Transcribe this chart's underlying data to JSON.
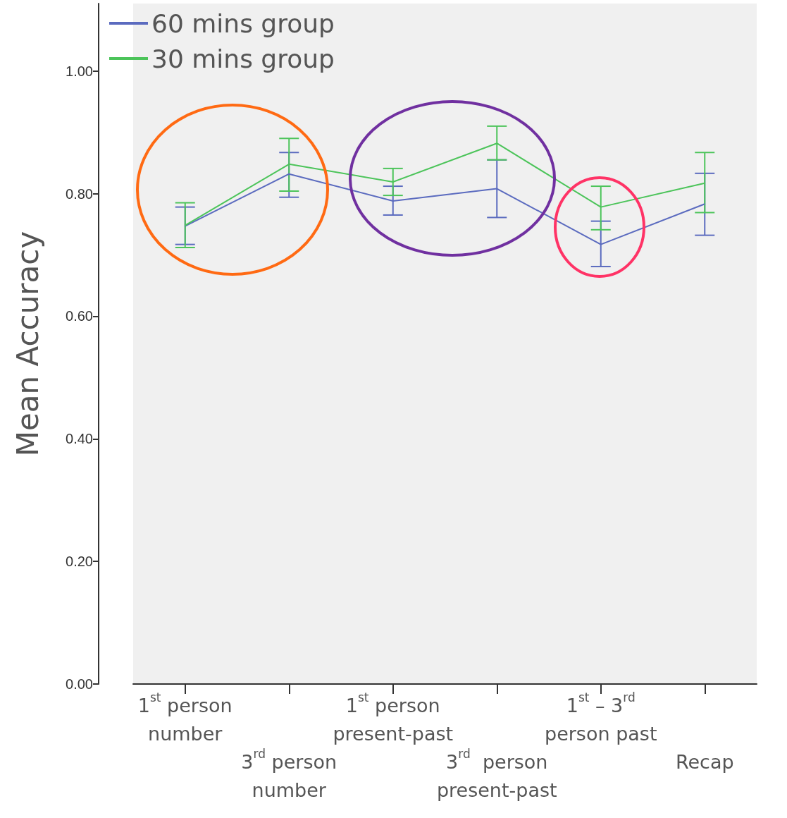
{
  "chart_data": {
    "type": "line",
    "ylabel": "Mean Accuracy",
    "categories": [
      "1$^{st}$ person number",
      "3$^{rd}$ person number",
      "1$^{st}$ person present-past",
      "3$^{rd}$  person present-past",
      "1$^{st}$ – 3$^{rd}$ person past",
      "Recap"
    ],
    "series": [
      {
        "name": "60 mins group",
        "color": "#5b6bbf",
        "values": [
          0.747,
          0.832,
          0.788,
          0.808,
          0.717,
          0.783
        ],
        "errors": [
          [
            0.717,
            0.778
          ],
          [
            0.794,
            0.867
          ],
          [
            0.765,
            0.812
          ],
          [
            0.761,
            0.855
          ],
          [
            0.681,
            0.755
          ],
          [
            0.732,
            0.833
          ]
        ]
      },
      {
        "name": "30 mins group",
        "color": "#4cc45a",
        "values": [
          0.748,
          0.848,
          0.819,
          0.882,
          0.778,
          0.817
        ],
        "errors": [
          [
            0.712,
            0.785
          ],
          [
            0.804,
            0.89
          ],
          [
            0.797,
            0.841
          ],
          [
            0.855,
            0.91
          ],
          [
            0.741,
            0.812
          ],
          [
            0.769,
            0.867
          ]
        ]
      }
    ],
    "ylim": [
      0,
      1.11
    ],
    "yticks": [
      {
        "value": 0,
        "label": "0.00"
      },
      {
        "value": 0.2,
        "label": "0.20"
      },
      {
        "value": 0.4,
        "label": "0.40"
      },
      {
        "value": 0.6,
        "label": "0.60"
      },
      {
        "value": 0.8,
        "label": "0.80"
      },
      {
        "value": 1,
        "label": "1.00"
      }
    ],
    "grid": false,
    "legend": "top left",
    "marker": "none",
    "line_style": "solid"
  }
}
